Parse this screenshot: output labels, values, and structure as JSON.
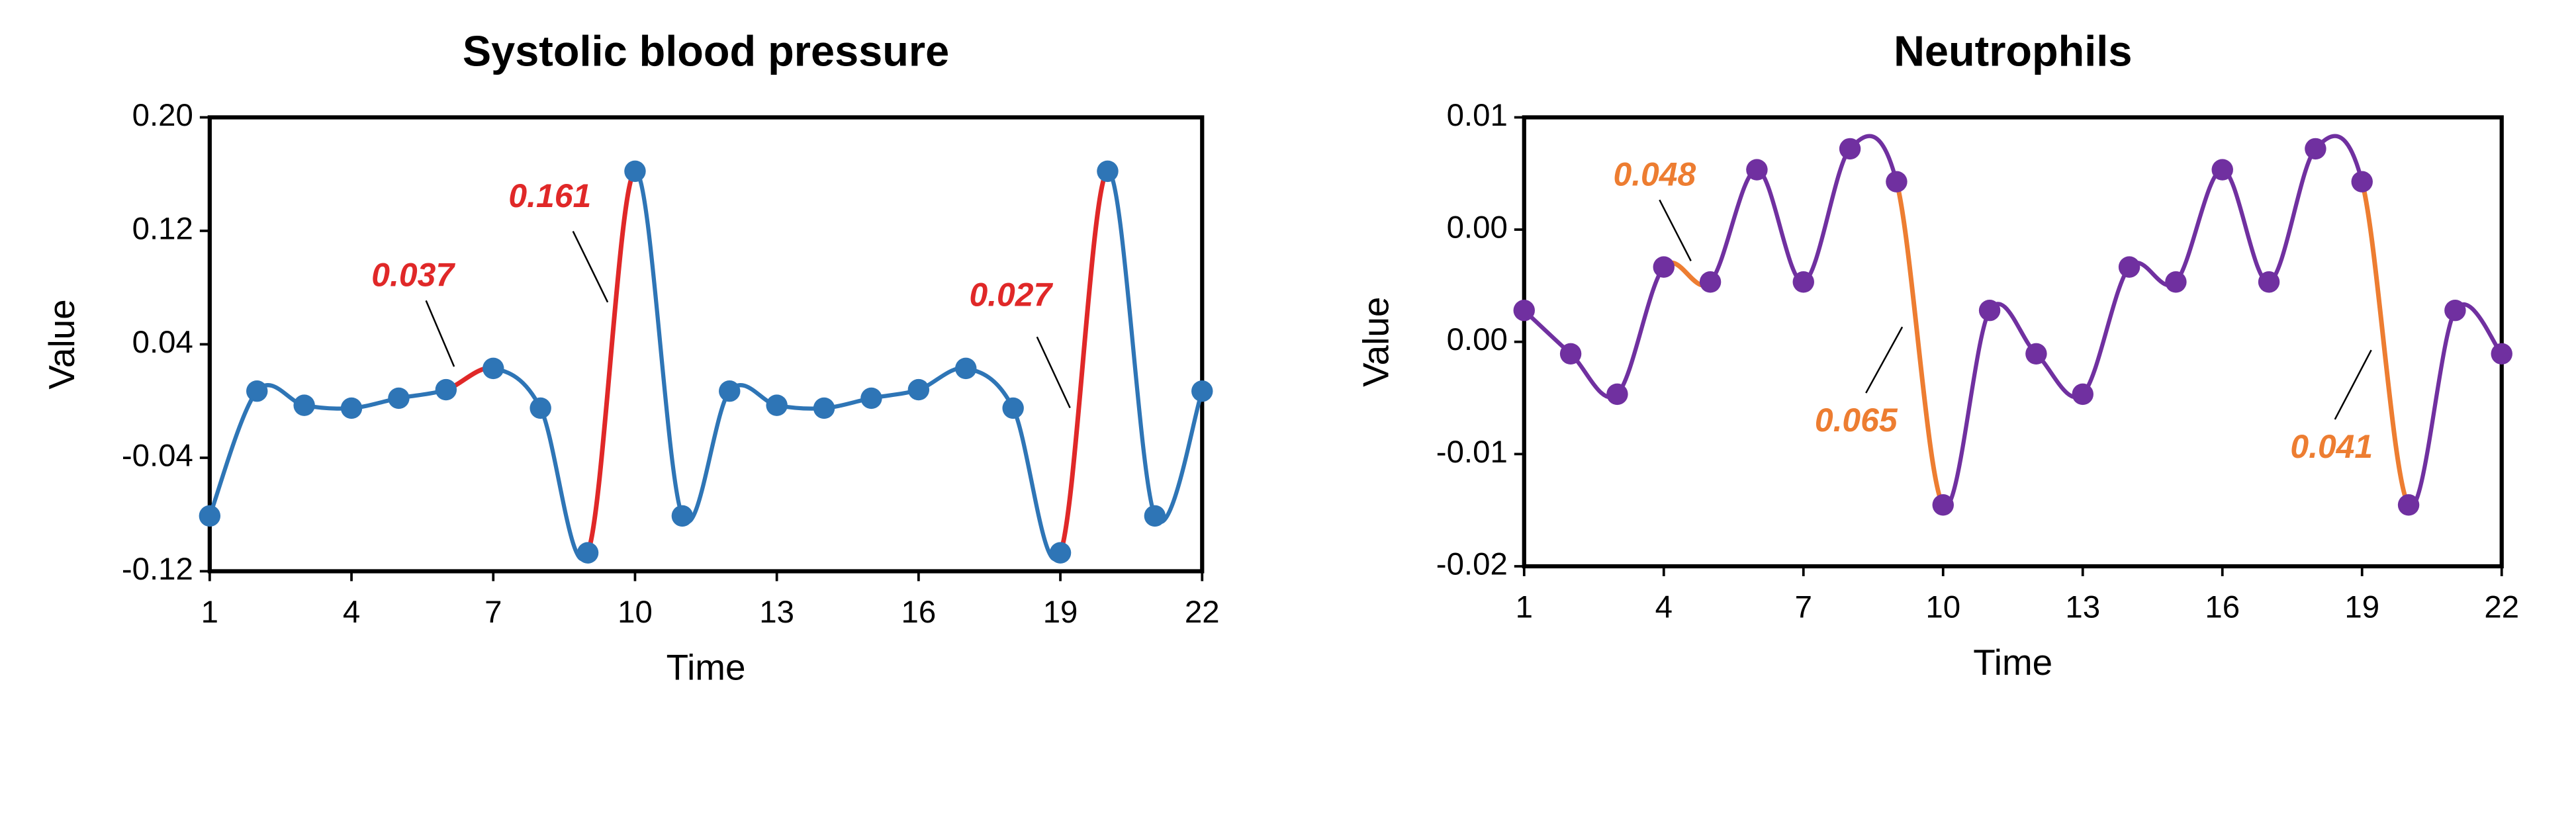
{
  "chart_data": [
    {
      "type": "line",
      "title": "Systolic blood pressure",
      "x_label": "Time",
      "y_label": "Value",
      "x": [
        1,
        2,
        3,
        4,
        5,
        6,
        7,
        8,
        9,
        10,
        11,
        12,
        13,
        14,
        15,
        16,
        17,
        18,
        19,
        20,
        21,
        22
      ],
      "values": [
        -0.081,
        0.007,
        -0.003,
        -0.005,
        0.002,
        0.008,
        0.023,
        -0.005,
        -0.107,
        0.162,
        -0.081,
        0.007,
        -0.003,
        -0.005,
        0.002,
        0.008,
        0.023,
        -0.005,
        -0.107,
        0.162,
        -0.081,
        0.007
      ],
      "color": "#2e75b6",
      "highlight_color": "#e02828",
      "highlights": [
        {
          "from": 6,
          "to": 7,
          "label": "0.037"
        },
        {
          "from": 9,
          "to": 10,
          "label": "0.161"
        },
        {
          "from": 19,
          "to": 20,
          "label": "0.027"
        }
      ],
      "xlim": [
        1,
        22
      ],
      "xticks": [
        1,
        4,
        7,
        10,
        13,
        16,
        19,
        22
      ],
      "ylim": [
        -0.12,
        0.2
      ],
      "yticks": [
        {
          "value": -0.12,
          "label": "-0.12"
        },
        {
          "value": -0.04,
          "label": "-0.04"
        },
        {
          "value": 0.04,
          "label": "0.04"
        },
        {
          "value": 0.12,
          "label": "0.12"
        },
        {
          "value": 0.2,
          "label": "0.20"
        }
      ]
    },
    {
      "type": "line",
      "title": "Neutrophils",
      "x_label": "Time",
      "y_label": "Value",
      "x": [
        1,
        2,
        3,
        4,
        5,
        6,
        7,
        8,
        9,
        10,
        11,
        12,
        13,
        14,
        15,
        16,
        17,
        18,
        19,
        20,
        21,
        22
      ],
      "values": [
        -0.0029,
        -0.0058,
        -0.0085,
        0.0,
        -0.001,
        0.0065,
        -0.001,
        0.0079,
        0.0057,
        -0.0159,
        -0.0029,
        -0.0058,
        -0.0085,
        0.0,
        -0.001,
        0.0065,
        -0.001,
        0.0079,
        0.0057,
        -0.0159,
        -0.0029,
        -0.0058
      ],
      "color": "#7030a0",
      "highlight_color": "#ed7d31",
      "highlights": [
        {
          "from": 4,
          "to": 5,
          "label": "0.048"
        },
        {
          "from": 9,
          "to": 10,
          "label": "0.065"
        },
        {
          "from": 19,
          "to": 20,
          "label": "0.041"
        }
      ],
      "xlim": [
        1,
        22
      ],
      "xticks": [
        1,
        4,
        7,
        10,
        13,
        16,
        19,
        22
      ],
      "ylim": [
        -0.02,
        0.01
      ],
      "yticks": [
        {
          "value": -0.02,
          "label": "-0.02"
        },
        {
          "value": -0.0125,
          "label": "-0.01"
        },
        {
          "value": -0.005,
          "label": "0.00"
        },
        {
          "value": 0.0025,
          "label": "0.00"
        },
        {
          "value": 0.01,
          "label": "0.01"
        }
      ]
    }
  ]
}
